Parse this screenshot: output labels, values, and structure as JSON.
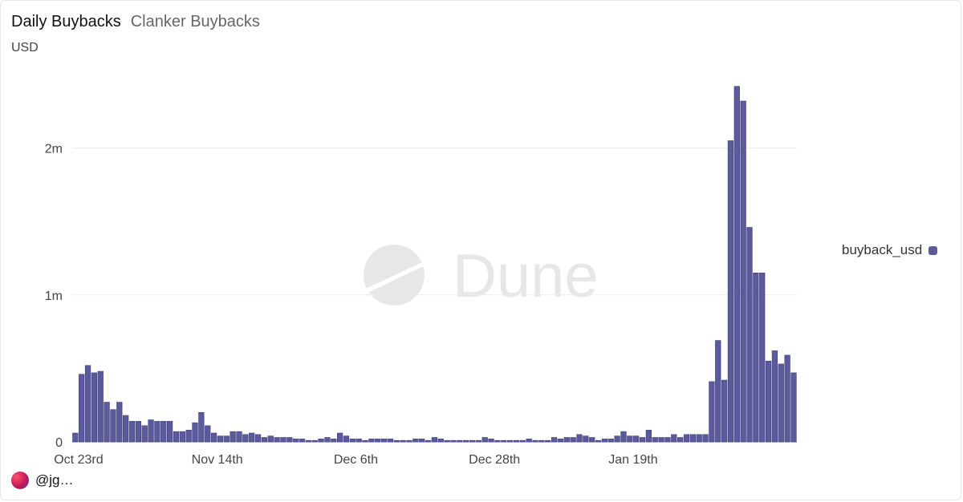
{
  "header": {
    "title": "Daily Buybacks",
    "subtitle": "Clanker Buybacks"
  },
  "unit_label": "USD",
  "watermark": "Dune",
  "footer": {
    "handle": "@jg…"
  },
  "colors": {
    "bar": "#5b5a9c",
    "grid": "#ececec",
    "axis": "#cfcfcf"
  },
  "chart_data": {
    "type": "bar",
    "title": "Daily Buybacks",
    "ylabel": "USD",
    "series": [
      {
        "name": "buyback_usd"
      }
    ],
    "legend": {
      "position": "right",
      "label": "buyback_usd"
    },
    "ylim": [
      0,
      2440000
    ],
    "y_ticks": [
      {
        "value": 0,
        "label": "0"
      },
      {
        "value": 1000000,
        "label": "1m"
      },
      {
        "value": 2000000,
        "label": "2m"
      }
    ],
    "x_ticks": [
      {
        "index": 0,
        "label": "Oct 23rd"
      },
      {
        "index": 22,
        "label": "Nov 14th"
      },
      {
        "index": 44,
        "label": "Dec 6th"
      },
      {
        "index": 66,
        "label": "Dec 28th"
      },
      {
        "index": 88,
        "label": "Jan 19th"
      }
    ],
    "grid": true,
    "values": [
      60000,
      460000,
      520000,
      470000,
      480000,
      270000,
      220000,
      270000,
      180000,
      140000,
      140000,
      110000,
      150000,
      140000,
      140000,
      140000,
      70000,
      70000,
      80000,
      130000,
      200000,
      110000,
      60000,
      40000,
      40000,
      70000,
      70000,
      50000,
      60000,
      50000,
      30000,
      40000,
      30000,
      30000,
      30000,
      20000,
      20000,
      10000,
      10000,
      20000,
      30000,
      20000,
      60000,
      40000,
      20000,
      20000,
      10000,
      20000,
      20000,
      20000,
      20000,
      10000,
      10000,
      10000,
      20000,
      20000,
      10000,
      30000,
      20000,
      10000,
      10000,
      10000,
      10000,
      10000,
      10000,
      30000,
      20000,
      10000,
      10000,
      10000,
      10000,
      10000,
      20000,
      10000,
      10000,
      10000,
      30000,
      20000,
      30000,
      30000,
      50000,
      40000,
      30000,
      10000,
      20000,
      20000,
      40000,
      70000,
      40000,
      40000,
      30000,
      80000,
      30000,
      30000,
      30000,
      50000,
      30000,
      50000,
      50000,
      50000,
      50000,
      410000,
      690000,
      420000,
      2050000,
      2420000,
      2320000,
      1460000,
      1150000,
      1150000,
      550000,
      620000,
      530000,
      590000,
      470000
    ]
  }
}
